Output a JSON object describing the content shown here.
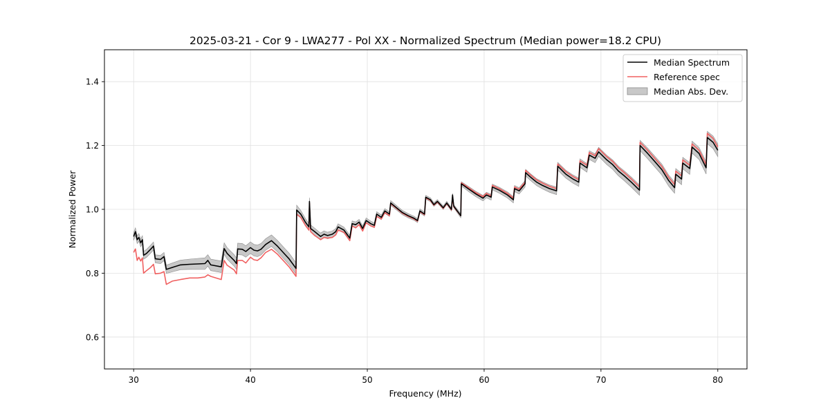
{
  "chart_data": {
    "type": "line",
    "title": "2025-03-21 - Cor 9 - LWA277 - Pol XX - Normalized Spectrum (Median power=18.2 CPU)",
    "xlabel": "Frequency (MHz)",
    "ylabel": "Normalized Power",
    "xlim": [
      27.5,
      82.5
    ],
    "ylim": [
      0.5,
      1.5
    ],
    "xticks": [
      30,
      40,
      50,
      60,
      70,
      80
    ],
    "yticks": [
      0.6,
      0.8,
      1.0,
      1.2,
      1.4
    ],
    "xtick_labels": [
      "30",
      "40",
      "50",
      "60",
      "70",
      "80"
    ],
    "ytick_labels": [
      "0.6",
      "0.8",
      "1.0",
      "1.2",
      "1.4"
    ],
    "grid": true,
    "legend_position": "top-right",
    "legend": [
      "Median Spectrum",
      "Reference spec",
      "Median Abs. Dev."
    ],
    "colors": {
      "median": "#000000",
      "reference": "#f06060",
      "band_fill": "#b0b0b0",
      "band_edge": "#8c8c8c",
      "overlap": "#8b1a1a",
      "grid": "#e0e0e0"
    },
    "mad_halfwidth": [
      [
        30.0,
        0.012
      ],
      [
        32.8,
        0.013
      ],
      [
        36.0,
        0.018
      ],
      [
        40.0,
        0.018
      ],
      [
        43.9,
        0.018
      ],
      [
        44.0,
        0.012
      ],
      [
        50.0,
        0.008
      ],
      [
        57.5,
        0.005
      ],
      [
        58.5,
        0.008
      ],
      [
        63.0,
        0.01
      ],
      [
        68.0,
        0.013
      ],
      [
        73.0,
        0.016
      ],
      [
        77.0,
        0.018
      ],
      [
        80.0,
        0.02
      ]
    ],
    "series": [
      {
        "name": "Median Spectrum",
        "points": [
          [
            30.0,
            0.915
          ],
          [
            30.15,
            0.93
          ],
          [
            30.3,
            0.905
          ],
          [
            30.45,
            0.912
          ],
          [
            30.6,
            0.895
          ],
          [
            30.75,
            0.905
          ],
          [
            30.85,
            0.856
          ],
          [
            31.1,
            0.862
          ],
          [
            31.45,
            0.875
          ],
          [
            31.7,
            0.885
          ],
          [
            31.85,
            0.845
          ],
          [
            32.3,
            0.843
          ],
          [
            32.6,
            0.852
          ],
          [
            32.8,
            0.812
          ],
          [
            33.3,
            0.818
          ],
          [
            34.0,
            0.826
          ],
          [
            34.8,
            0.828
          ],
          [
            35.5,
            0.829
          ],
          [
            36.1,
            0.83
          ],
          [
            36.35,
            0.84
          ],
          [
            36.6,
            0.826
          ],
          [
            37.5,
            0.82
          ],
          [
            37.75,
            0.877
          ],
          [
            38.0,
            0.862
          ],
          [
            38.6,
            0.84
          ],
          [
            38.8,
            0.83
          ],
          [
            38.9,
            0.876
          ],
          [
            39.3,
            0.875
          ],
          [
            39.6,
            0.868
          ],
          [
            40.0,
            0.88
          ],
          [
            40.3,
            0.872
          ],
          [
            40.6,
            0.87
          ],
          [
            40.9,
            0.875
          ],
          [
            41.3,
            0.89
          ],
          [
            41.8,
            0.902
          ],
          [
            42.3,
            0.885
          ],
          [
            42.8,
            0.865
          ],
          [
            43.3,
            0.845
          ],
          [
            43.9,
            0.815
          ],
          [
            43.95,
            0.998
          ],
          [
            44.3,
            0.985
          ],
          [
            44.7,
            0.96
          ],
          [
            45.0,
            0.945
          ],
          [
            45.05,
            1.025
          ],
          [
            45.15,
            0.94
          ],
          [
            45.5,
            0.93
          ],
          [
            46.0,
            0.915
          ],
          [
            46.3,
            0.922
          ],
          [
            46.6,
            0.918
          ],
          [
            47.0,
            0.922
          ],
          [
            47.3,
            0.93
          ],
          [
            47.5,
            0.945
          ],
          [
            48.0,
            0.935
          ],
          [
            48.5,
            0.91
          ],
          [
            48.7,
            0.955
          ],
          [
            49.0,
            0.952
          ],
          [
            49.3,
            0.96
          ],
          [
            49.6,
            0.94
          ],
          [
            49.9,
            0.965
          ],
          [
            50.3,
            0.955
          ],
          [
            50.6,
            0.95
          ],
          [
            50.8,
            0.985
          ],
          [
            51.2,
            0.975
          ],
          [
            51.5,
            0.995
          ],
          [
            51.9,
            0.985
          ],
          [
            52.0,
            1.02
          ],
          [
            52.5,
            1.005
          ],
          [
            53.0,
            0.99
          ],
          [
            53.5,
            0.98
          ],
          [
            54.0,
            0.972
          ],
          [
            54.3,
            0.965
          ],
          [
            54.5,
            0.995
          ],
          [
            54.9,
            0.985
          ],
          [
            55.0,
            1.038
          ],
          [
            55.4,
            1.03
          ],
          [
            55.7,
            1.015
          ],
          [
            56.0,
            1.025
          ],
          [
            56.5,
            1.005
          ],
          [
            56.8,
            1.02
          ],
          [
            57.2,
            1.0
          ],
          [
            57.3,
            1.045
          ],
          [
            57.4,
            1.01
          ],
          [
            58.0,
            0.98
          ],
          [
            58.05,
            1.08
          ],
          [
            58.7,
            1.063
          ],
          [
            59.3,
            1.048
          ],
          [
            59.9,
            1.035
          ],
          [
            60.2,
            1.045
          ],
          [
            60.6,
            1.038
          ],
          [
            60.7,
            1.07
          ],
          [
            61.3,
            1.06
          ],
          [
            62.0,
            1.045
          ],
          [
            62.5,
            1.03
          ],
          [
            62.6,
            1.065
          ],
          [
            63.0,
            1.058
          ],
          [
            63.5,
            1.08
          ],
          [
            63.55,
            1.115
          ],
          [
            64.0,
            1.1
          ],
          [
            64.5,
            1.085
          ],
          [
            65.0,
            1.075
          ],
          [
            65.6,
            1.065
          ],
          [
            66.2,
            1.058
          ],
          [
            66.3,
            1.135
          ],
          [
            67.0,
            1.11
          ],
          [
            67.6,
            1.095
          ],
          [
            68.1,
            1.085
          ],
          [
            68.2,
            1.145
          ],
          [
            68.8,
            1.13
          ],
          [
            69.0,
            1.17
          ],
          [
            69.5,
            1.16
          ],
          [
            69.8,
            1.18
          ],
          [
            70.5,
            1.155
          ],
          [
            71.0,
            1.14
          ],
          [
            71.5,
            1.12
          ],
          [
            72.0,
            1.105
          ],
          [
            72.6,
            1.085
          ],
          [
            73.3,
            1.06
          ],
          [
            73.35,
            1.2
          ],
          [
            74.0,
            1.175
          ],
          [
            74.6,
            1.15
          ],
          [
            75.2,
            1.125
          ],
          [
            75.8,
            1.09
          ],
          [
            76.3,
            1.068
          ],
          [
            76.4,
            1.11
          ],
          [
            76.9,
            1.095
          ],
          [
            77.0,
            1.145
          ],
          [
            77.6,
            1.128
          ],
          [
            77.8,
            1.195
          ],
          [
            78.4,
            1.175
          ],
          [
            79.0,
            1.13
          ],
          [
            79.1,
            1.225
          ],
          [
            79.6,
            1.21
          ],
          [
            80.0,
            1.185
          ]
        ]
      },
      {
        "name": "Reference spec",
        "points": [
          [
            30.0,
            0.865
          ],
          [
            30.15,
            0.876
          ],
          [
            30.3,
            0.84
          ],
          [
            30.45,
            0.85
          ],
          [
            30.6,
            0.838
          ],
          [
            30.75,
            0.848
          ],
          [
            30.85,
            0.8
          ],
          [
            31.1,
            0.808
          ],
          [
            31.45,
            0.818
          ],
          [
            31.7,
            0.828
          ],
          [
            31.85,
            0.798
          ],
          [
            32.3,
            0.8
          ],
          [
            32.6,
            0.805
          ],
          [
            32.8,
            0.765
          ],
          [
            33.3,
            0.775
          ],
          [
            34.0,
            0.78
          ],
          [
            34.8,
            0.785
          ],
          [
            35.5,
            0.785
          ],
          [
            36.1,
            0.788
          ],
          [
            36.35,
            0.795
          ],
          [
            36.6,
            0.79
          ],
          [
            37.5,
            0.78
          ],
          [
            37.75,
            0.84
          ],
          [
            38.0,
            0.825
          ],
          [
            38.6,
            0.81
          ],
          [
            38.8,
            0.798
          ],
          [
            38.9,
            0.84
          ],
          [
            39.3,
            0.84
          ],
          [
            39.6,
            0.832
          ],
          [
            40.0,
            0.85
          ],
          [
            40.3,
            0.842
          ],
          [
            40.6,
            0.84
          ],
          [
            40.9,
            0.848
          ],
          [
            41.3,
            0.865
          ],
          [
            41.8,
            0.875
          ],
          [
            42.3,
            0.86
          ],
          [
            42.8,
            0.84
          ],
          [
            43.3,
            0.82
          ],
          [
            43.9,
            0.79
          ],
          [
            43.95,
            0.985
          ],
          [
            44.3,
            0.975
          ],
          [
            44.7,
            0.95
          ],
          [
            45.0,
            0.935
          ],
          [
            45.05,
            1.02
          ],
          [
            45.15,
            0.93
          ],
          [
            45.5,
            0.918
          ],
          [
            46.0,
            0.905
          ],
          [
            46.3,
            0.912
          ],
          [
            46.6,
            0.91
          ],
          [
            47.0,
            0.912
          ],
          [
            47.3,
            0.92
          ],
          [
            47.5,
            0.935
          ],
          [
            48.0,
            0.928
          ],
          [
            48.5,
            0.902
          ],
          [
            48.7,
            0.948
          ],
          [
            49.0,
            0.942
          ],
          [
            49.3,
            0.952
          ],
          [
            49.6,
            0.932
          ],
          [
            49.9,
            0.958
          ],
          [
            50.3,
            0.948
          ],
          [
            50.6,
            0.944
          ],
          [
            50.8,
            0.978
          ],
          [
            51.2,
            0.97
          ],
          [
            51.5,
            0.99
          ],
          [
            51.9,
            0.98
          ],
          [
            52.0,
            1.018
          ],
          [
            52.5,
            1.003
          ],
          [
            53.0,
            0.988
          ],
          [
            53.5,
            0.978
          ],
          [
            54.0,
            0.97
          ],
          [
            54.3,
            0.963
          ],
          [
            54.5,
            0.993
          ],
          [
            54.9,
            0.983
          ],
          [
            55.0,
            1.036
          ],
          [
            55.4,
            1.028
          ],
          [
            55.7,
            1.013
          ],
          [
            56.0,
            1.023
          ],
          [
            56.5,
            1.003
          ],
          [
            56.8,
            1.018
          ],
          [
            57.2,
            0.998
          ],
          [
            57.3,
            1.04
          ],
          [
            57.4,
            1.008
          ],
          [
            58.0,
            0.98
          ],
          [
            58.05,
            1.083
          ],
          [
            58.7,
            1.067
          ],
          [
            59.3,
            1.052
          ],
          [
            59.9,
            1.04
          ],
          [
            60.2,
            1.05
          ],
          [
            60.6,
            1.042
          ],
          [
            60.7,
            1.075
          ],
          [
            61.3,
            1.065
          ],
          [
            62.0,
            1.05
          ],
          [
            62.5,
            1.035
          ],
          [
            62.6,
            1.07
          ],
          [
            63.0,
            1.063
          ],
          [
            63.5,
            1.085
          ],
          [
            63.55,
            1.122
          ],
          [
            64.0,
            1.107
          ],
          [
            64.5,
            1.092
          ],
          [
            65.0,
            1.082
          ],
          [
            65.6,
            1.072
          ],
          [
            66.2,
            1.065
          ],
          [
            66.3,
            1.142
          ],
          [
            67.0,
            1.118
          ],
          [
            67.6,
            1.103
          ],
          [
            68.1,
            1.093
          ],
          [
            68.2,
            1.152
          ],
          [
            68.8,
            1.138
          ],
          [
            69.0,
            1.178
          ],
          [
            69.5,
            1.168
          ],
          [
            69.8,
            1.19
          ],
          [
            70.5,
            1.165
          ],
          [
            71.0,
            1.15
          ],
          [
            71.5,
            1.13
          ],
          [
            72.0,
            1.115
          ],
          [
            72.6,
            1.095
          ],
          [
            73.3,
            1.07
          ],
          [
            73.35,
            1.21
          ],
          [
            74.0,
            1.185
          ],
          [
            74.6,
            1.16
          ],
          [
            75.2,
            1.135
          ],
          [
            75.8,
            1.1
          ],
          [
            76.3,
            1.078
          ],
          [
            76.4,
            1.12
          ],
          [
            76.9,
            1.105
          ],
          [
            77.0,
            1.155
          ],
          [
            77.6,
            1.138
          ],
          [
            77.8,
            1.205
          ],
          [
            78.4,
            1.185
          ],
          [
            79.0,
            1.14
          ],
          [
            79.1,
            1.238
          ],
          [
            79.6,
            1.222
          ],
          [
            80.0,
            1.195
          ]
        ]
      }
    ]
  }
}
